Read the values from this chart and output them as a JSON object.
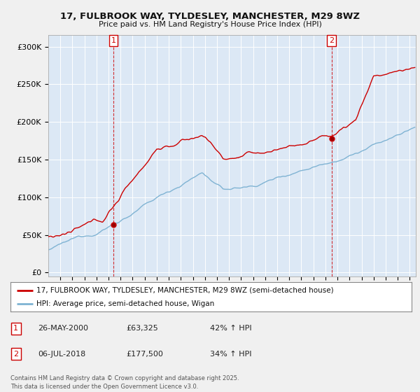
{
  "title": "17, FULBROOK WAY, TYLDESLEY, MANCHESTER, M29 8WZ",
  "subtitle": "Price paid vs. HM Land Registry's House Price Index (HPI)",
  "ylabel_ticks": [
    "£0",
    "£50K",
    "£100K",
    "£150K",
    "£200K",
    "£250K",
    "£300K"
  ],
  "ytick_values": [
    0,
    50000,
    100000,
    150000,
    200000,
    250000,
    300000
  ],
  "ylim": [
    -5000,
    315000
  ],
  "xlim_start": 1995.0,
  "xlim_end": 2025.5,
  "red_color": "#cc0000",
  "blue_color": "#7fb3d3",
  "plot_bg_color": "#dce8f5",
  "legend_label_red": "17, FULBROOK WAY, TYLDESLEY, MANCHESTER, M29 8WZ (semi-detached house)",
  "legend_label_blue": "HPI: Average price, semi-detached house, Wigan",
  "marker1_x": 2000.41,
  "marker1_y": 63325,
  "marker2_x": 2018.51,
  "marker2_y": 177500,
  "footer": "Contains HM Land Registry data © Crown copyright and database right 2025.\nThis data is licensed under the Open Government Licence v3.0.",
  "background_color": "#f0f0f0",
  "grid_color": "#ffffff"
}
